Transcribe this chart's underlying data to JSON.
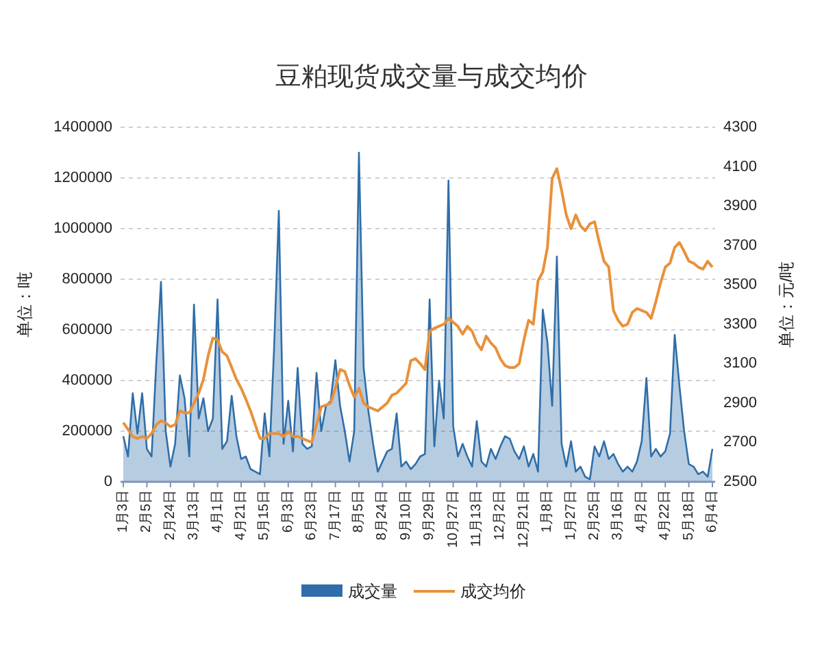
{
  "chart_data": {
    "type": "area",
    "title": "豆粕现货成交量与成交均价",
    "ylabel": "单位：吨",
    "y2label": "单位：元/吨",
    "categories": [
      "1月3日",
      null,
      null,
      null,
      null,
      "2月5日",
      null,
      null,
      null,
      null,
      "2月24日",
      null,
      null,
      null,
      null,
      "3月13日",
      null,
      null,
      null,
      null,
      "4月1日",
      null,
      null,
      null,
      null,
      "4月21日",
      null,
      null,
      null,
      null,
      "5月15日",
      null,
      null,
      null,
      null,
      "6月3日",
      null,
      null,
      null,
      null,
      "6月23日",
      null,
      null,
      null,
      null,
      "7月17日",
      null,
      null,
      null,
      null,
      "8月5日",
      null,
      null,
      null,
      null,
      "8月24日",
      null,
      null,
      null,
      null,
      "9月10日",
      null,
      null,
      null,
      null,
      "9月29日",
      null,
      null,
      null,
      null,
      "10月27日",
      null,
      null,
      null,
      null,
      "11月13日",
      null,
      null,
      null,
      null,
      "12月2日",
      null,
      null,
      null,
      null,
      "12月21日",
      null,
      null,
      null,
      null,
      "1月8日",
      null,
      null,
      null,
      null,
      "1月27日",
      null,
      null,
      null,
      null,
      "2月25日",
      null,
      null,
      null,
      null,
      "3月16日",
      null,
      null,
      null,
      null,
      "4月2日",
      null,
      null,
      null,
      null,
      "4月22日",
      null,
      null,
      null,
      null,
      "5月18日",
      null,
      null,
      null,
      null,
      "6月4日"
    ],
    "series": [
      {
        "name": "成交量",
        "color": "#2f6ea8",
        "values": [
          180000,
          100000,
          350000,
          190000,
          350000,
          130000,
          100000,
          470000,
          790000,
          200000,
          60000,
          150000,
          420000,
          330000,
          100000,
          700000,
          250000,
          330000,
          200000,
          250000,
          720000,
          130000,
          160000,
          340000,
          180000,
          90000,
          100000,
          50000,
          40000,
          30000,
          270000,
          100000,
          530000,
          1070000,
          150000,
          320000,
          120000,
          450000,
          150000,
          130000,
          140000,
          430000,
          200000,
          300000,
          320000,
          480000,
          300000,
          200000,
          80000,
          200000,
          1300000,
          450000,
          280000,
          150000,
          40000,
          80000,
          120000,
          130000,
          270000,
          60000,
          80000,
          50000,
          70000,
          100000,
          110000,
          720000,
          140000,
          400000,
          250000,
          1190000,
          220000,
          100000,
          150000,
          100000,
          60000,
          240000,
          80000,
          60000,
          130000,
          90000,
          140000,
          180000,
          170000,
          120000,
          90000,
          140000,
          60000,
          110000,
          40000,
          680000,
          550000,
          300000,
          890000,
          150000,
          60000,
          160000,
          40000,
          60000,
          20000,
          10000,
          140000,
          100000,
          160000,
          90000,
          110000,
          70000,
          40000,
          60000,
          40000,
          80000,
          160000,
          410000,
          100000,
          130000,
          100000,
          120000,
          190000,
          580000,
          380000,
          200000,
          70000,
          60000,
          30000,
          40000,
          20000,
          130000
        ]
      },
      {
        "name": "成交均价",
        "type": "line",
        "axis": "y2",
        "color": "#e8913a",
        "values": [
          2800,
          2766,
          2730,
          2720,
          2730,
          2720,
          2745,
          2790,
          2810,
          2800,
          2780,
          2790,
          2860,
          2850,
          2850,
          2900,
          2950,
          3020,
          3140,
          3230,
          3220,
          3160,
          3140,
          3080,
          3020,
          2975,
          2920,
          2860,
          2790,
          2720,
          2720,
          2745,
          2745,
          2745,
          2730,
          2755,
          2730,
          2730,
          2720,
          2710,
          2700,
          2790,
          2880,
          2890,
          2900,
          2975,
          3070,
          3060,
          2990,
          2930,
          2975,
          2900,
          2880,
          2870,
          2860,
          2880,
          2900,
          2940,
          2950,
          2975,
          3000,
          3115,
          3125,
          3100,
          3070,
          3265,
          3280,
          3290,
          3300,
          3330,
          3310,
          3290,
          3250,
          3290,
          3265,
          3205,
          3170,
          3240,
          3205,
          3180,
          3125,
          3090,
          3080,
          3080,
          3100,
          3220,
          3320,
          3300,
          3520,
          3565,
          3690,
          4040,
          4090,
          3980,
          3855,
          3785,
          3855,
          3800,
          3775,
          3810,
          3820,
          3715,
          3620,
          3590,
          3370,
          3320,
          3290,
          3300,
          3360,
          3380,
          3370,
          3360,
          3330,
          3415,
          3510,
          3590,
          3610,
          3690,
          3715,
          3670,
          3620,
          3610,
          3590,
          3580,
          3620,
          3590
        ]
      }
    ],
    "ylim": [
      0,
      1400000
    ],
    "yticks": [
      0,
      200000,
      400000,
      600000,
      800000,
      1000000,
      1200000,
      1400000
    ],
    "y2lim": [
      2500,
      4300
    ],
    "y2ticks": [
      2500,
      2700,
      2900,
      3100,
      3300,
      3500,
      3700,
      3900,
      4100,
      4300
    ],
    "grid": "y",
    "legend": "bottom"
  }
}
